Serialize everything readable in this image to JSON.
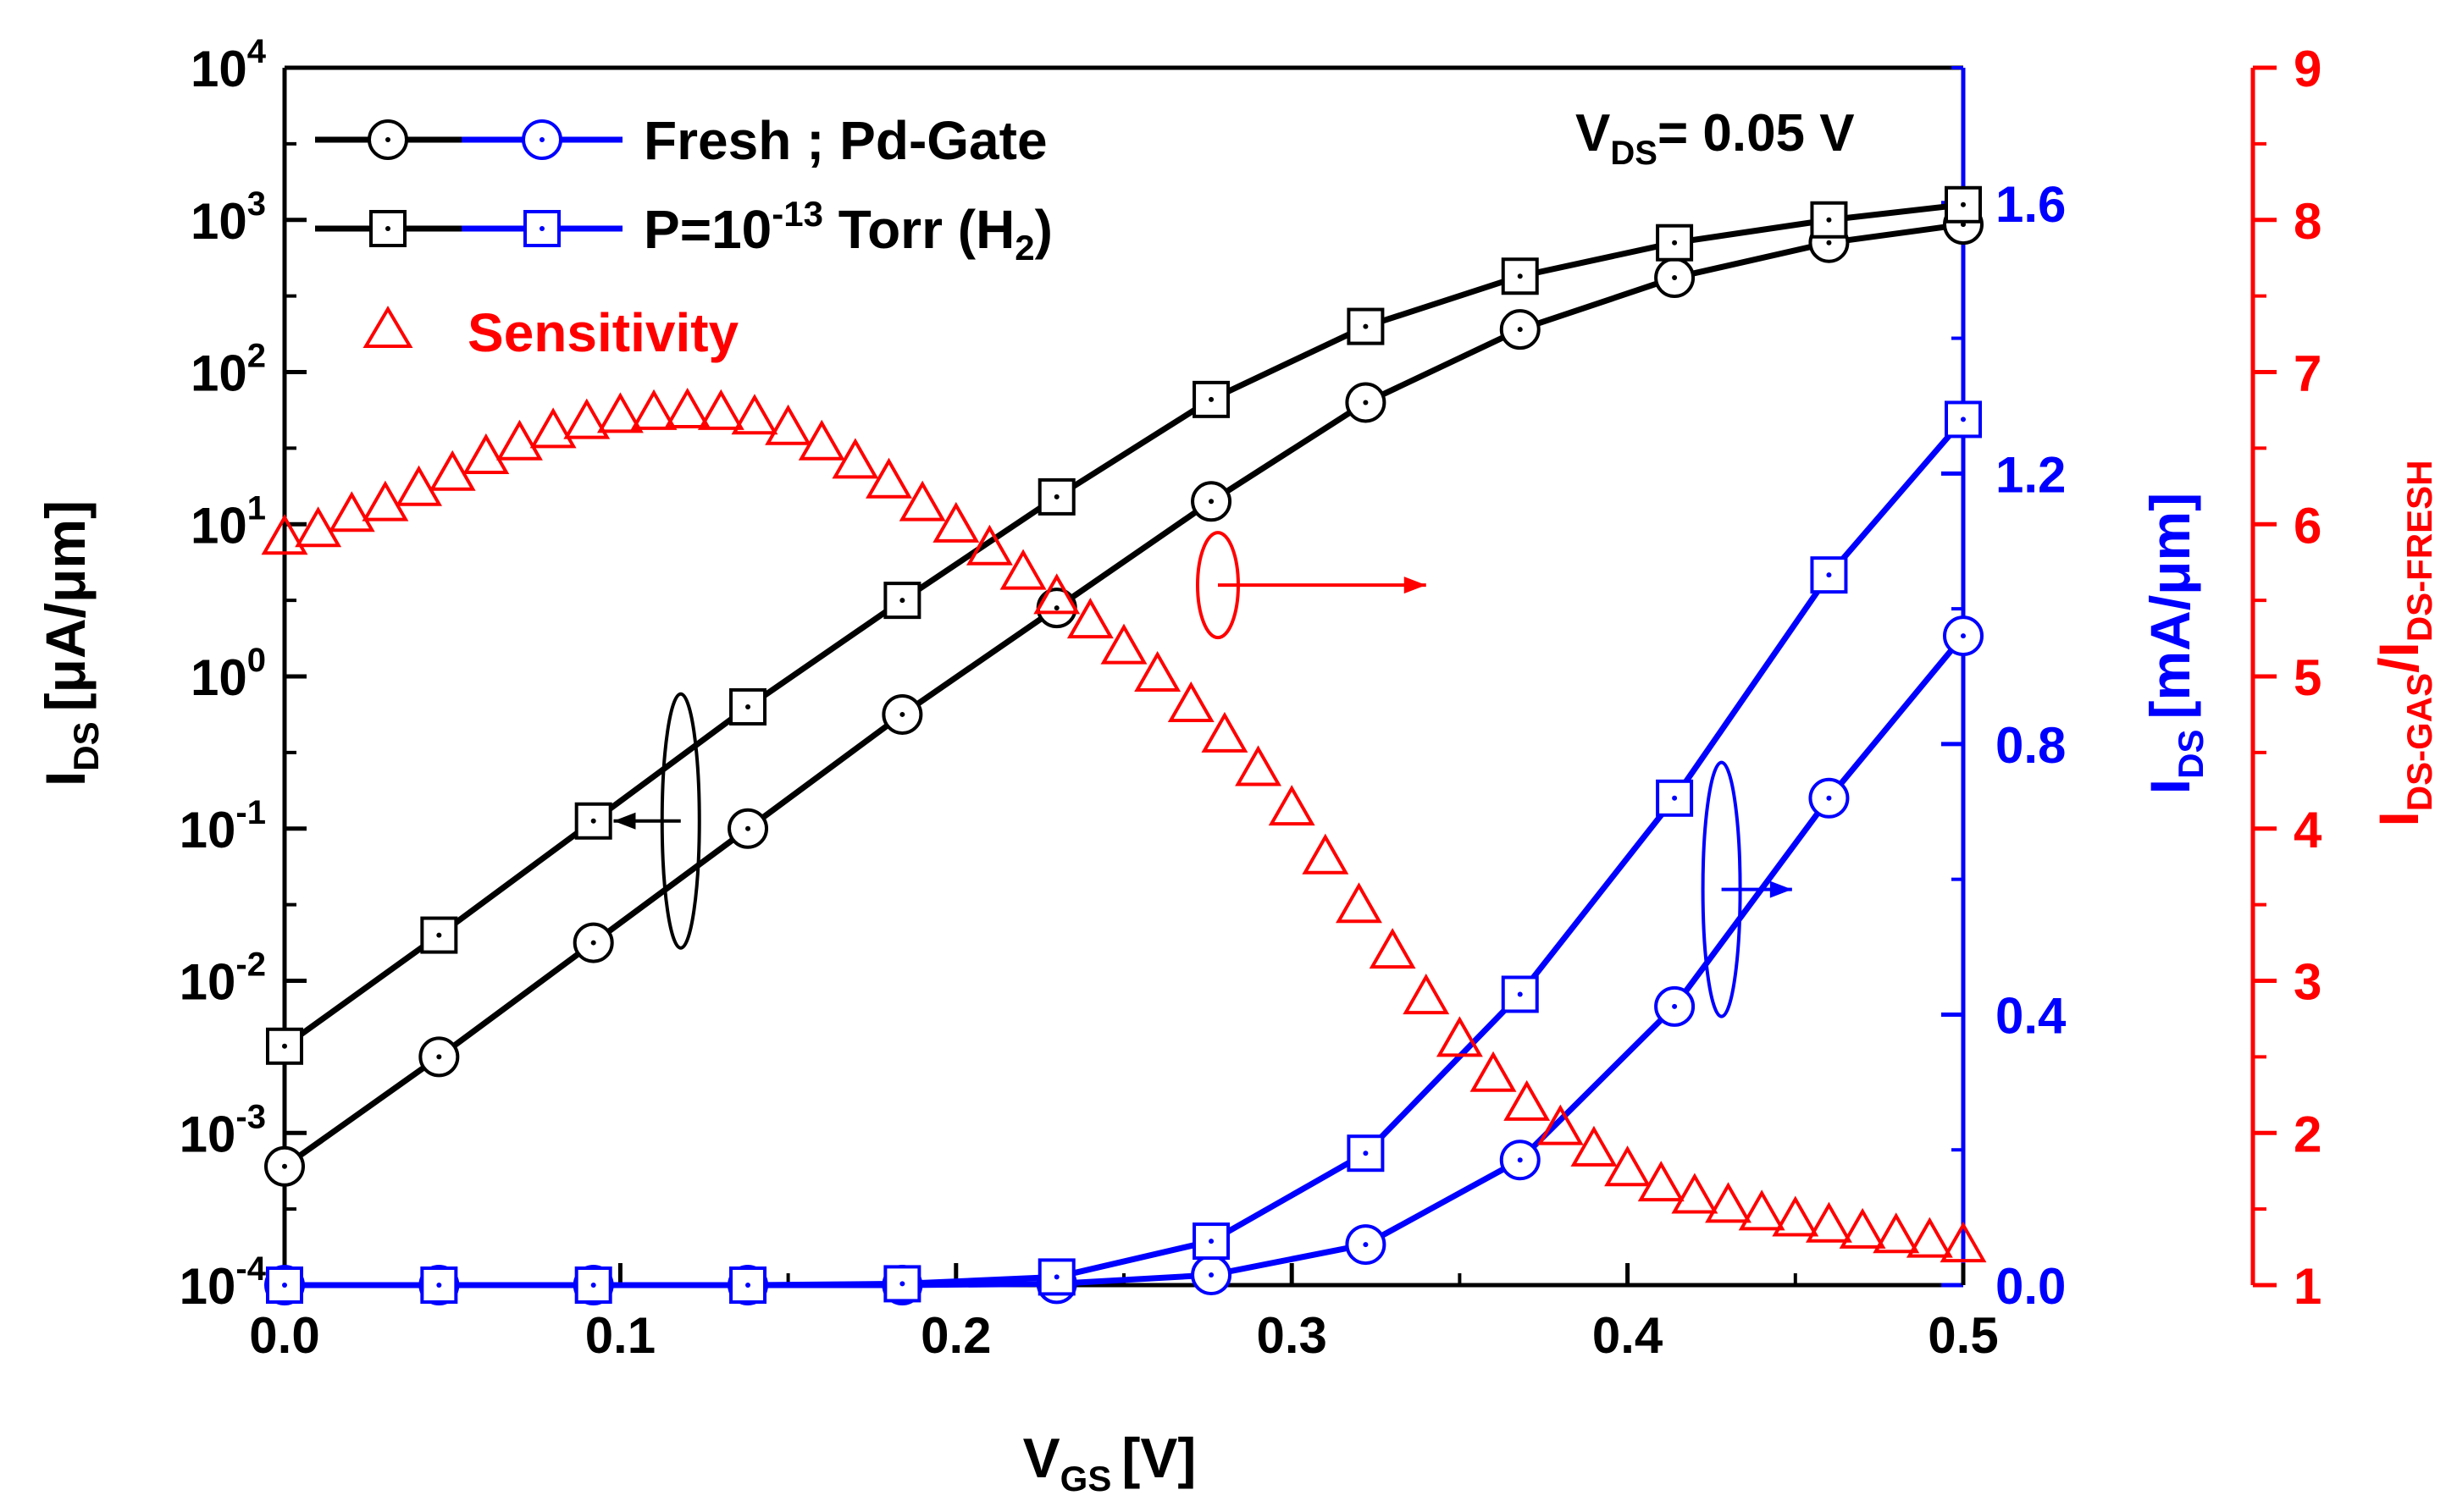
{
  "chart_data": {
    "type": "line",
    "x": {
      "label": "V",
      "label_sub": "GS",
      "label_unit": "[V]",
      "range": [
        0.0,
        0.5
      ],
      "ticks": [
        "0.0",
        "0.1",
        "0.2",
        "0.3",
        "0.4",
        "0.5"
      ]
    },
    "y_left": {
      "label_main": "I",
      "label_sub": "DS",
      "label_unit": "[μA/μm]",
      "scale": "log",
      "range_exp": [
        -4,
        4
      ],
      "ticks": [
        {
          "base": "10",
          "exp": "-4"
        },
        {
          "base": "10",
          "exp": "-3"
        },
        {
          "base": "10",
          "exp": "-2"
        },
        {
          "base": "10",
          "exp": "-1"
        },
        {
          "base": "10",
          "exp": "0"
        },
        {
          "base": "10",
          "exp": "1"
        },
        {
          "base": "10",
          "exp": "2"
        },
        {
          "base": "10",
          "exp": "3"
        },
        {
          "base": "10",
          "exp": "4"
        }
      ],
      "color": "#000000"
    },
    "y_right1": {
      "label_main": "I",
      "label_sub": "DS",
      "label_unit": "[mA/μm]",
      "range": [
        0.0,
        1.8
      ],
      "ticks": [
        "0.0",
        "0.4",
        "0.8",
        "1.2",
        "1.6"
      ],
      "color": "#0000ff"
    },
    "y_right2": {
      "label_main": "I",
      "label_sub1": "DS-GAS",
      "label_slash": "/I",
      "label_sub2": "DS-FRESH",
      "range": [
        1,
        9
      ],
      "ticks": [
        "1",
        "2",
        "3",
        "4",
        "5",
        "6",
        "7",
        "8",
        "9"
      ],
      "color": "#ff0000"
    },
    "legend": {
      "placement": "top-left",
      "fresh": "Fresh ; Pd-Gate",
      "gas_prefix": "P=10",
      "gas_exp": "-13",
      "gas_suffix": " Torr (H",
      "gas_sub": "2",
      "gas_close": ")",
      "sensitivity": "Sensitivity"
    },
    "annotation": {
      "prefix": "V",
      "sub": "DS",
      "value": "= 0.05 V"
    },
    "series": [
      {
        "name": "Fresh (log)",
        "axis": "left",
        "marker": "circle",
        "color": "#000000",
        "x": [
          0.0,
          0.046,
          0.092,
          0.138,
          0.184,
          0.23,
          0.276,
          0.322,
          0.368,
          0.414,
          0.46,
          0.5
        ],
        "log10_y": [
          -3.22,
          -2.5,
          -1.75,
          -1.0,
          -0.25,
          0.45,
          1.15,
          1.8,
          2.28,
          2.62,
          2.85,
          2.97
        ]
      },
      {
        "name": "H2 (log)",
        "axis": "left",
        "marker": "square",
        "color": "#000000",
        "x": [
          0.0,
          0.046,
          0.092,
          0.138,
          0.184,
          0.23,
          0.276,
          0.322,
          0.368,
          0.414,
          0.46,
          0.5
        ],
        "log10_y": [
          -2.43,
          -1.7,
          -0.95,
          -0.2,
          0.5,
          1.18,
          1.82,
          2.3,
          2.63,
          2.85,
          3.0,
          3.1
        ]
      },
      {
        "name": "Fresh (linear)",
        "axis": "right1",
        "marker": "circle",
        "color": "#0000ff",
        "x": [
          0.0,
          0.046,
          0.092,
          0.138,
          0.184,
          0.23,
          0.276,
          0.322,
          0.368,
          0.414,
          0.46,
          0.5
        ],
        "y": [
          0.0,
          0.0,
          0.0,
          0.0,
          0.0,
          0.002,
          0.015,
          0.06,
          0.185,
          0.412,
          0.72,
          0.96
        ]
      },
      {
        "name": "H2 (linear)",
        "axis": "right1",
        "marker": "square",
        "color": "#0000ff",
        "x": [
          0.0,
          0.046,
          0.092,
          0.138,
          0.184,
          0.23,
          0.276,
          0.322,
          0.368,
          0.414,
          0.46,
          0.5
        ],
        "y": [
          0.0,
          0.0,
          0.0,
          0.0,
          0.002,
          0.012,
          0.065,
          0.195,
          0.43,
          0.72,
          1.05,
          1.28
        ]
      },
      {
        "name": "Sensitivity",
        "axis": "right2",
        "marker": "triangle",
        "color": "#ff0000",
        "x": [
          0.0,
          0.01,
          0.02,
          0.03,
          0.04,
          0.05,
          0.06,
          0.07,
          0.08,
          0.09,
          0.1,
          0.11,
          0.12,
          0.13,
          0.14,
          0.15,
          0.16,
          0.17,
          0.18,
          0.19,
          0.2,
          0.21,
          0.22,
          0.23,
          0.24,
          0.25,
          0.26,
          0.27,
          0.28,
          0.29,
          0.3,
          0.31,
          0.32,
          0.33,
          0.34,
          0.35,
          0.36,
          0.37,
          0.38,
          0.39,
          0.4,
          0.41,
          0.42,
          0.43,
          0.44,
          0.45,
          0.46,
          0.47,
          0.48,
          0.49,
          0.5
        ],
        "y": [
          5.9,
          5.95,
          6.05,
          6.12,
          6.22,
          6.32,
          6.43,
          6.52,
          6.6,
          6.66,
          6.7,
          6.72,
          6.73,
          6.72,
          6.69,
          6.62,
          6.52,
          6.4,
          6.27,
          6.12,
          5.98,
          5.83,
          5.67,
          5.51,
          5.35,
          5.18,
          5.0,
          4.8,
          4.6,
          4.38,
          4.12,
          3.8,
          3.48,
          3.18,
          2.88,
          2.6,
          2.37,
          2.18,
          2.02,
          1.88,
          1.75,
          1.65,
          1.57,
          1.51,
          1.46,
          1.42,
          1.38,
          1.34,
          1.31,
          1.28,
          1.25
        ]
      }
    ],
    "ellipses": [
      {
        "name": "left-arrow-ellipse",
        "color": "#000000",
        "cx": 0.118,
        "cy_log": -0.95,
        "arrow_to_x": 0.098
      },
      {
        "name": "red-arrow-ellipse",
        "color": "#ff0000",
        "cx": 0.278,
        "cy_log": 0.6,
        "arrow_to_x": 0.34
      },
      {
        "name": "blue-arrow-ellipse",
        "color": "#0000ff",
        "cx": 0.428,
        "cy_log": -1.4,
        "arrow_to_x": 0.449
      }
    ]
  }
}
